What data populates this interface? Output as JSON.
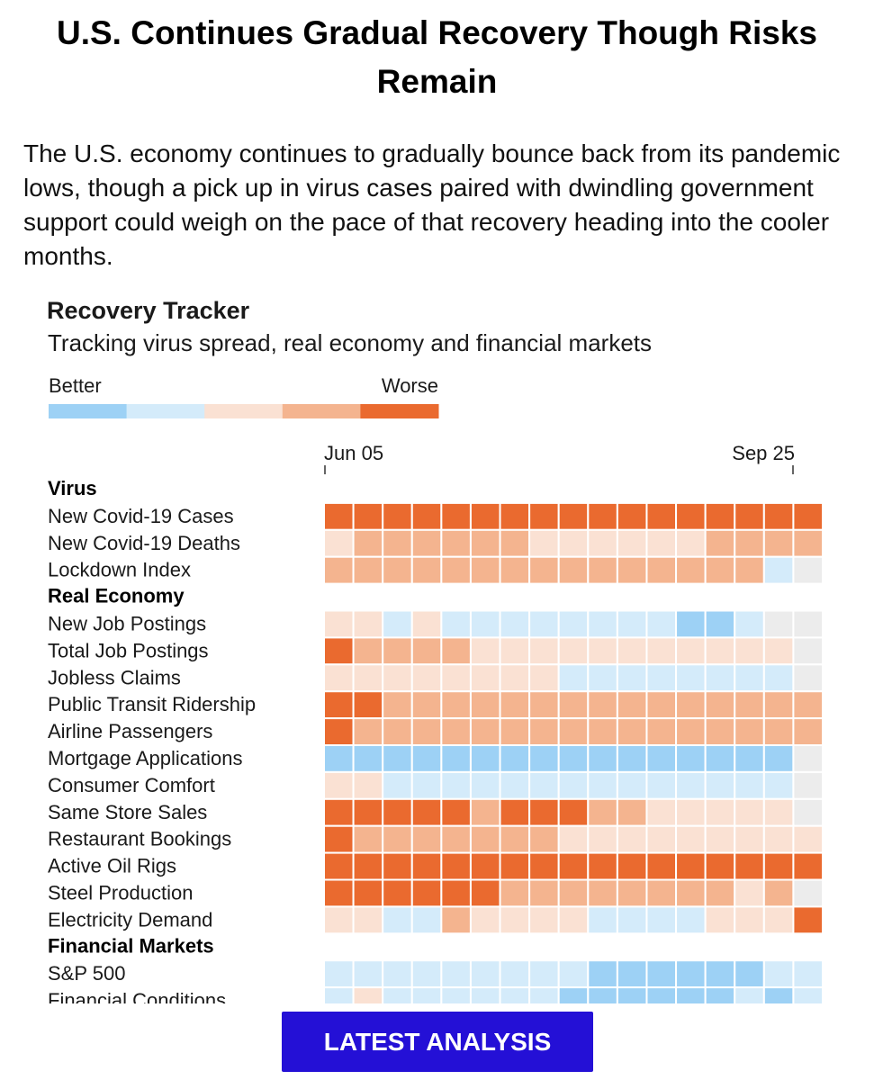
{
  "article": {
    "headline": "U.S. Continues Gradual Recovery Though Risks Remain",
    "intro": "The U.S. economy continues to gradually bounce back from its pandemic lows, though a pick up in virus cases paired with dwindling government support could weigh on the pace of that recovery heading into the cooler months.",
    "cta_label": "LATEST ANALYSIS"
  },
  "chart_data": {
    "type": "heatmap",
    "title": "Recovery Tracker",
    "subtitle": "Tracking virus spread, real economy and financial markets",
    "legend": {
      "low_label": "Better",
      "high_label": "Worse",
      "colors": [
        "#9dd1f5",
        "#d4ebfa",
        "#fae1d3",
        "#f4b48f",
        "#ea6a2f"
      ],
      "no_data_color": "#ececec"
    },
    "x_tick_labels": [
      "Jun 05",
      "Sep 25"
    ],
    "x_start": "Jun 05",
    "x_end": "Sep 25",
    "levels_note": "0 = Better … 4 = Worse, null = no data",
    "groups": [
      {
        "name": "Virus",
        "rows": [
          {
            "label": "New Covid-19 Cases",
            "values": [
              4,
              4,
              4,
              4,
              4,
              4,
              4,
              4,
              4,
              4,
              4,
              4,
              4,
              4,
              4,
              4,
              4
            ]
          },
          {
            "label": "New Covid-19 Deaths",
            "values": [
              2,
              3,
              3,
              3,
              3,
              3,
              3,
              2,
              2,
              2,
              2,
              2,
              2,
              3,
              3,
              3,
              3
            ]
          },
          {
            "label": "Lockdown Index",
            "values": [
              3,
              3,
              3,
              3,
              3,
              3,
              3,
              3,
              3,
              3,
              3,
              3,
              3,
              3,
              3,
              1,
              null
            ]
          }
        ]
      },
      {
        "name": "Real Economy",
        "rows": [
          {
            "label": "New Job Postings",
            "values": [
              2,
              2,
              1,
              2,
              1,
              1,
              1,
              1,
              1,
              1,
              1,
              1,
              0,
              0,
              1,
              null,
              null
            ]
          },
          {
            "label": "Total Job Postings",
            "values": [
              4,
              3,
              3,
              3,
              3,
              2,
              2,
              2,
              2,
              2,
              2,
              2,
              2,
              2,
              2,
              2,
              null
            ]
          },
          {
            "label": "Jobless Claims",
            "values": [
              2,
              2,
              2,
              2,
              2,
              2,
              2,
              2,
              1,
              1,
              1,
              1,
              1,
              1,
              1,
              1,
              null
            ]
          },
          {
            "label": "Public Transit Ridership",
            "values": [
              4,
              4,
              3,
              3,
              3,
              3,
              3,
              3,
              3,
              3,
              3,
              3,
              3,
              3,
              3,
              3,
              3
            ]
          },
          {
            "label": "Airline Passengers",
            "values": [
              4,
              3,
              3,
              3,
              3,
              3,
              3,
              3,
              3,
              3,
              3,
              3,
              3,
              3,
              3,
              3,
              3
            ]
          },
          {
            "label": "Mortgage Applications",
            "values": [
              0,
              0,
              0,
              0,
              0,
              0,
              0,
              0,
              0,
              0,
              0,
              0,
              0,
              0,
              0,
              0,
              null
            ]
          },
          {
            "label": "Consumer Comfort",
            "values": [
              2,
              2,
              1,
              1,
              1,
              1,
              1,
              1,
              1,
              1,
              1,
              1,
              1,
              1,
              1,
              1,
              null
            ]
          },
          {
            "label": "Same Store Sales",
            "values": [
              4,
              4,
              4,
              4,
              4,
              3,
              4,
              4,
              4,
              3,
              3,
              2,
              2,
              2,
              2,
              2,
              null
            ]
          },
          {
            "label": "Restaurant Bookings",
            "values": [
              4,
              3,
              3,
              3,
              3,
              3,
              3,
              3,
              2,
              2,
              2,
              2,
              2,
              2,
              2,
              2,
              2
            ]
          },
          {
            "label": "Active Oil Rigs",
            "values": [
              4,
              4,
              4,
              4,
              4,
              4,
              4,
              4,
              4,
              4,
              4,
              4,
              4,
              4,
              4,
              4,
              4
            ]
          },
          {
            "label": "Steel Production",
            "values": [
              4,
              4,
              4,
              4,
              4,
              4,
              3,
              3,
              3,
              3,
              3,
              3,
              3,
              3,
              2,
              3,
              null
            ]
          },
          {
            "label": "Electricity Demand",
            "values": [
              2,
              2,
              1,
              1,
              3,
              2,
              2,
              2,
              2,
              1,
              1,
              1,
              1,
              2,
              2,
              2,
              4
            ]
          }
        ]
      },
      {
        "name": "Financial Markets",
        "rows": [
          {
            "label": "S&P 500",
            "values": [
              1,
              1,
              1,
              1,
              1,
              1,
              1,
              1,
              1,
              0,
              0,
              0,
              0,
              0,
              0,
              1,
              1
            ]
          },
          {
            "label": "Financial Conditions",
            "values": [
              1,
              2,
              1,
              1,
              1,
              1,
              1,
              1,
              0,
              0,
              0,
              0,
              0,
              0,
              1,
              0,
              1
            ]
          }
        ]
      }
    ]
  }
}
